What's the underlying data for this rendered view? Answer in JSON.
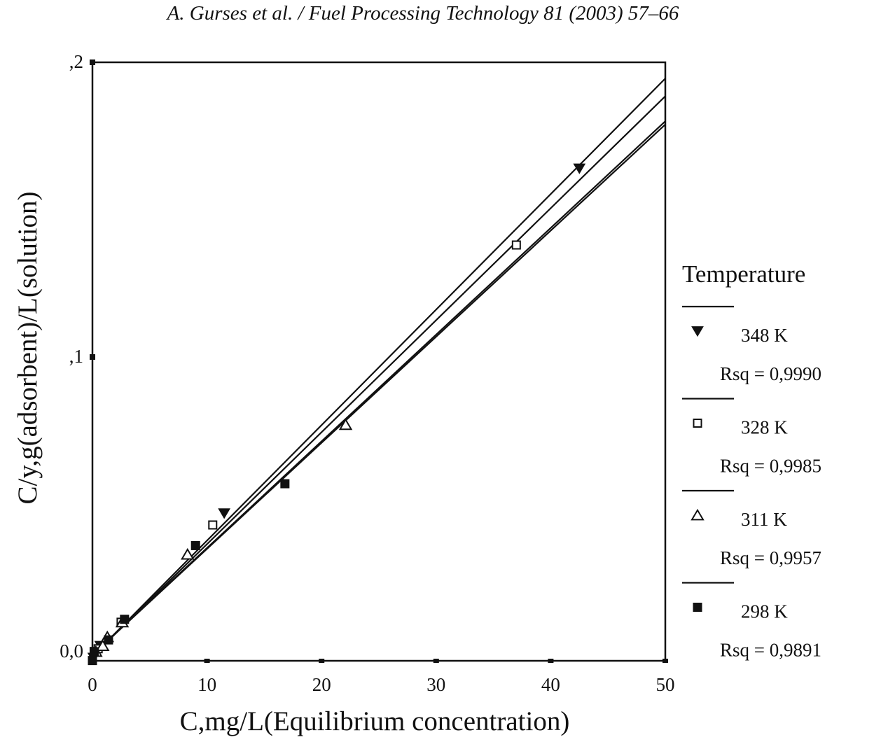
{
  "page": {
    "running_head": "A. Gurses et al. / Fuel Processing Technology 81 (2003) 57–66"
  },
  "chart_data": {
    "type": "scatter",
    "xlabel": "C,mg/L(Equilibrium concentration)",
    "ylabel": "C/y,g(adsorbent)/L(solution)",
    "xlim": [
      0,
      50
    ],
    "ylim": [
      -0.003,
      0.2
    ],
    "x_ticks": [
      0,
      10,
      20,
      30,
      40,
      50
    ],
    "x_tick_labels": [
      "0",
      "10",
      "20",
      "30",
      "40",
      "50"
    ],
    "y_ticks": [
      0.0,
      0.1,
      0.2
    ],
    "y_tick_labels": [
      "0,0",
      ",1",
      ",2"
    ],
    "grid": false,
    "legend_title": "Temperature",
    "legend_position": "right",
    "series": [
      {
        "name": "348 K",
        "rsq_label": "Rsq = 0,9990",
        "marker": "triangle-down-filled",
        "points": [
          [
            0.1,
            -0.002
          ],
          [
            0.3,
            0.0
          ],
          [
            0.7,
            0.002
          ],
          [
            11.5,
            0.047
          ],
          [
            42.5,
            0.164
          ]
        ],
        "fit": {
          "slope": 0.00392,
          "intercept": -0.0015
        }
      },
      {
        "name": "328 K",
        "rsq_label": "Rsq = 0,9985",
        "marker": "square-open",
        "points": [
          [
            0.2,
            0.0
          ],
          [
            0.5,
            0.001
          ],
          [
            2.5,
            0.01
          ],
          [
            10.5,
            0.043
          ],
          [
            37.0,
            0.138
          ]
        ],
        "fit": {
          "slope": 0.0038,
          "intercept": -0.0015
        }
      },
      {
        "name": "311 K",
        "rsq_label": "Rsq = 0,9957",
        "marker": "triangle-up-open",
        "points": [
          [
            0.3,
            0.0
          ],
          [
            0.9,
            0.002
          ],
          [
            1.3,
            0.005
          ],
          [
            2.6,
            0.01
          ],
          [
            8.3,
            0.033
          ],
          [
            22.1,
            0.077
          ]
        ],
        "fit": {
          "slope": 0.00362,
          "intercept": -0.001
        }
      },
      {
        "name": "298 K",
        "rsq_label": "Rsq = 0,9891",
        "marker": "square-filled",
        "points": [
          [
            0.0,
            -0.003
          ],
          [
            0.15,
            0.0
          ],
          [
            1.4,
            0.004
          ],
          [
            2.8,
            0.011
          ],
          [
            9.0,
            0.036
          ],
          [
            16.8,
            0.057
          ]
        ],
        "fit": {
          "slope": 0.0036,
          "intercept": -0.0011
        }
      }
    ]
  }
}
